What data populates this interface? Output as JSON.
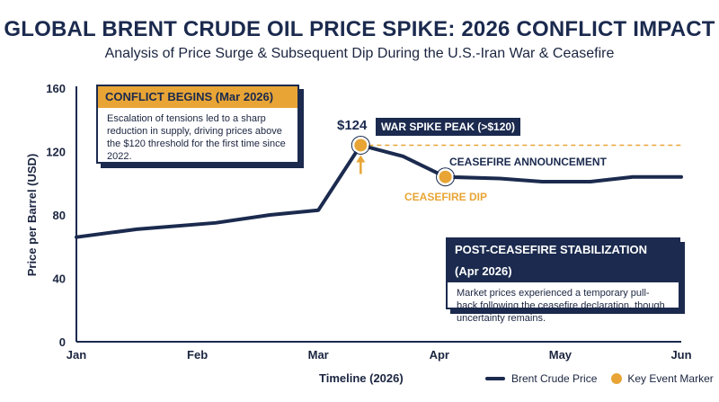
{
  "chart_data": {
    "type": "line",
    "title": "GLOBAL BRENT CRUDE OIL PRICE SPIKE: 2026 CONFLICT IMPACT",
    "subtitle": "Analysis of Price Surge & Subsequent Dip During the U.S.-Iran War & Ceasefire",
    "xlabel": "Timeline (2026)",
    "ylabel": "Price per Barrel (USD)",
    "ylim": [
      0,
      160
    ],
    "yticks": [
      0,
      40,
      80,
      120,
      160
    ],
    "xlim": [
      0,
      5
    ],
    "xticks": [
      {
        "value": 0,
        "label": "Jan"
      },
      {
        "value": 1,
        "label": "Feb"
      },
      {
        "value": 2,
        "label": "Mar"
      },
      {
        "value": 3,
        "label": "Apr"
      },
      {
        "value": 4,
        "label": "May"
      },
      {
        "value": 5,
        "label": "Jun"
      }
    ],
    "series": [
      {
        "name": "Brent Crude Price",
        "color": "#1b2a4e",
        "x": [
          0,
          0.5,
          1.15,
          1.6,
          2.0,
          2.35,
          2.7,
          3.05,
          3.5,
          3.85,
          4.25,
          4.6,
          5.0
        ],
        "y": [
          66,
          71,
          75,
          80,
          83,
          124,
          117,
          104,
          103,
          101,
          101,
          104,
          104
        ]
      }
    ],
    "markers": [
      {
        "name": "war-peak",
        "x": 2.35,
        "y": 124,
        "label": "$124"
      },
      {
        "name": "ceasefire-dip",
        "x": 3.05,
        "y": 104,
        "label": "CEASEFIRE DIP"
      }
    ],
    "threshold_line": {
      "y": 124,
      "x_from": 2.35,
      "x_to": 5.0
    },
    "legend": {
      "placement": "bottom-right",
      "line_label": "Brent Crude Price",
      "marker_label": "Key Event Marker"
    },
    "grid": false
  },
  "annotations": {
    "conflict_box": {
      "title": "CONFLICT BEGINS (Mar 2026)",
      "body": "Escalation of tensions led to a sharp reduction in supply, driving prices above the $120 threshold for the first time since 2022."
    },
    "peak_tag": "WAR SPIKE PEAK (>$120)",
    "ceasefire_announcement": "CEASEFIRE ANNOUNCEMENT",
    "stabilization_box": {
      "title": "POST-CEASEFIRE STABILIZATION (Apr 2026)",
      "body": "Market prices experienced a temporary pull-back following the ceasefire declaration, though uncertainty remains."
    }
  },
  "colors": {
    "navy": "#1b2a4e",
    "accent": "#e8a535",
    "dashed": "#e8a535"
  }
}
